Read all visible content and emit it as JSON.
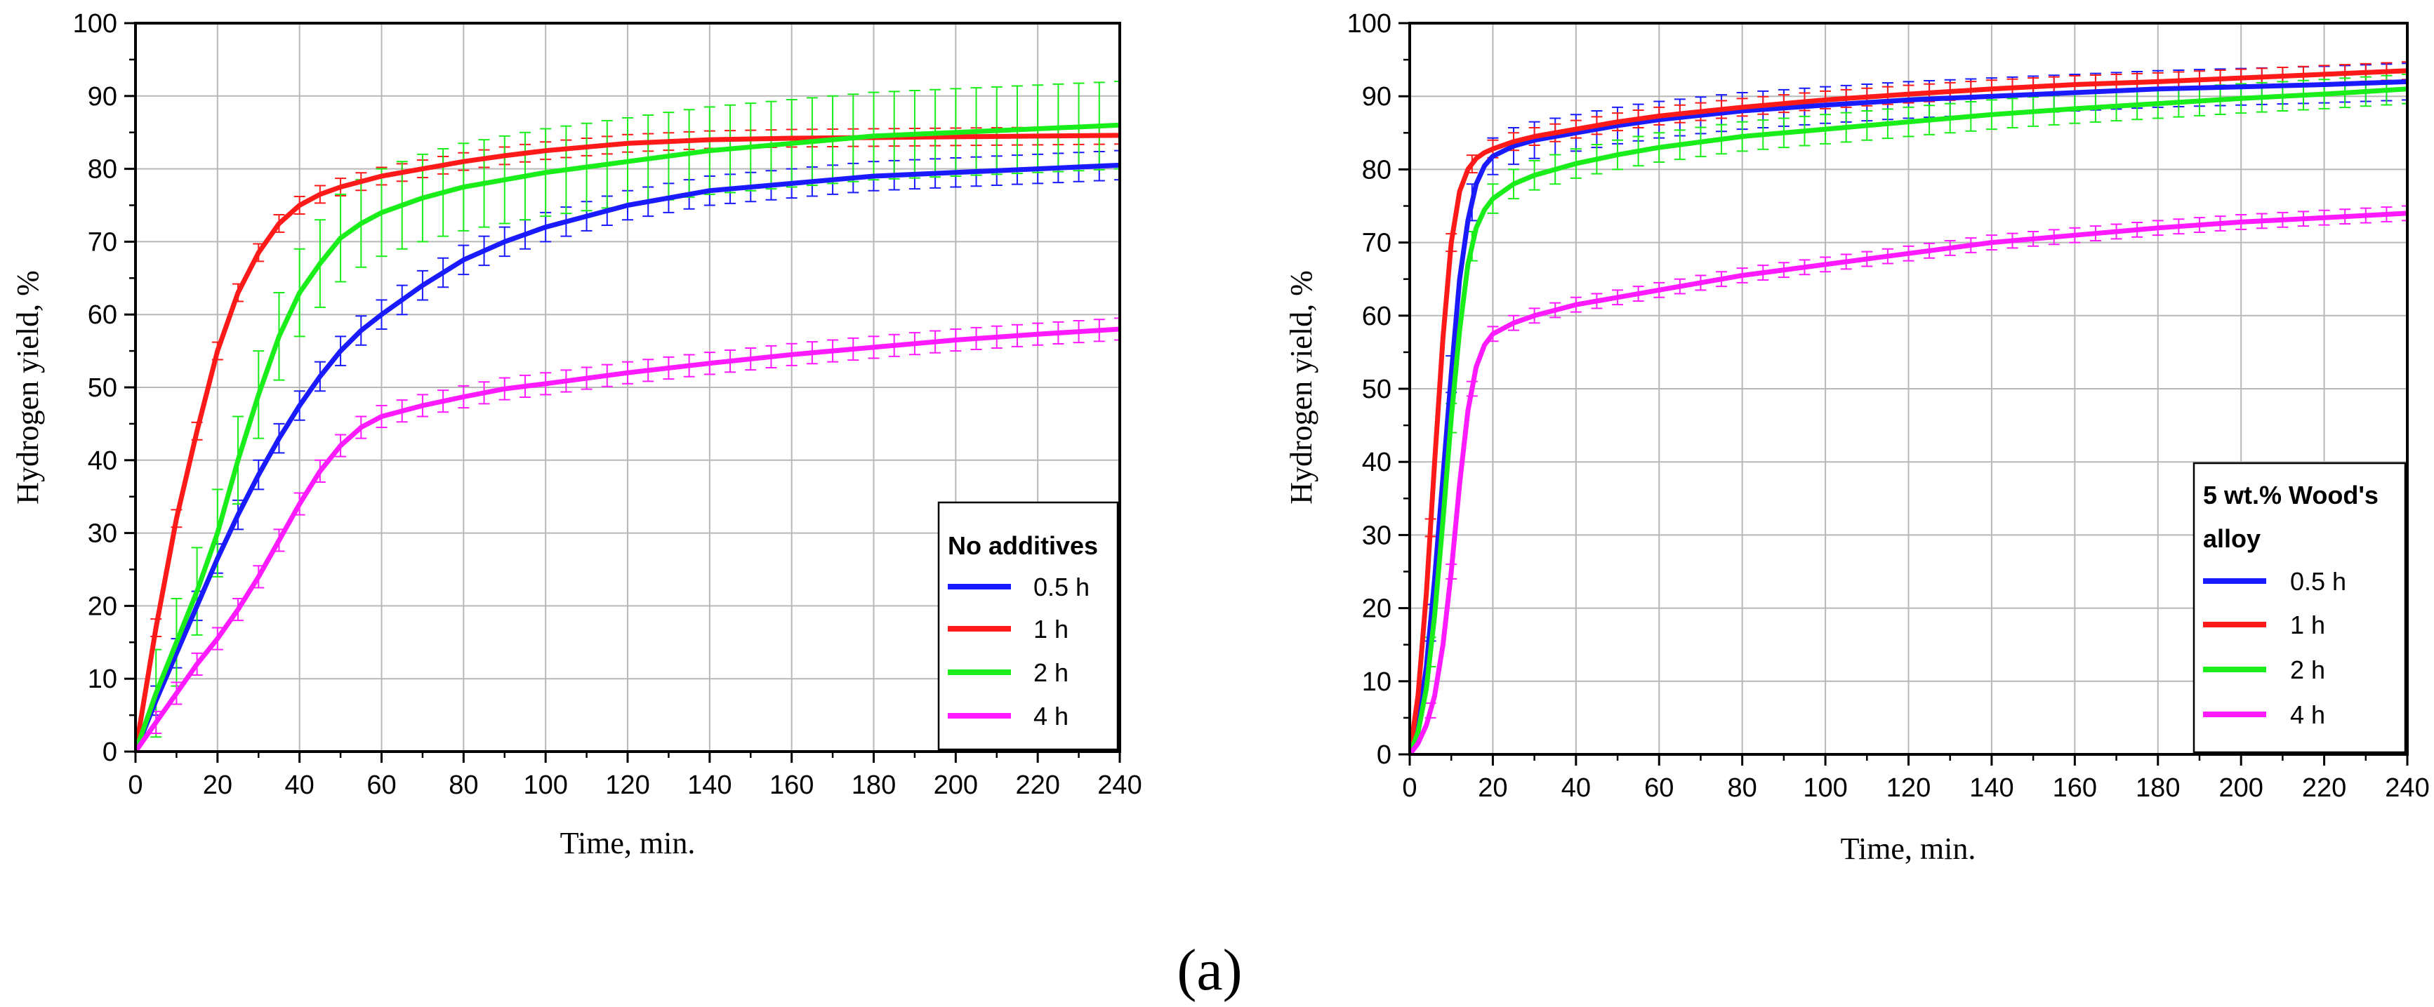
{
  "figure_label": "(a)",
  "chart_data": [
    {
      "type": "line",
      "title": "",
      "xlabel": "Time, min.",
      "ylabel": "Hydrogen yield, %",
      "xlim": [
        0,
        240
      ],
      "ylim": [
        0,
        100
      ],
      "xticks": [
        "0",
        "20",
        "40",
        "60",
        "80",
        "100",
        "120",
        "140",
        "160",
        "180",
        "200",
        "220",
        "240"
      ],
      "yticks": [
        "0",
        "10",
        "20",
        "30",
        "40",
        "50",
        "60",
        "70",
        "80",
        "90",
        "100"
      ],
      "grid": true,
      "error_bars": true,
      "legend_position": "bottom-right",
      "legend_title": "No additives",
      "series": [
        {
          "name": "0.5 h",
          "color": "#1a1aff",
          "x": [
            0,
            5,
            10,
            15,
            20,
            25,
            30,
            35,
            40,
            45,
            50,
            55,
            60,
            70,
            80,
            90,
            100,
            110,
            120,
            140,
            160,
            180,
            200,
            220,
            240
          ],
          "y": [
            0,
            7,
            13.5,
            20,
            26.5,
            32.5,
            38,
            43,
            47.5,
            51.5,
            55,
            57.8,
            60,
            64,
            67.5,
            70,
            72,
            73.5,
            75,
            77,
            78,
            79,
            79.5,
            80,
            80.5
          ],
          "err": 2
        },
        {
          "name": "1 h",
          "color": "#ff1a1a",
          "x": [
            0,
            5,
            10,
            15,
            20,
            25,
            30,
            35,
            40,
            45,
            50,
            60,
            70,
            80,
            90,
            100,
            120,
            140,
            160,
            180,
            200,
            220,
            240
          ],
          "y": [
            0,
            17,
            32,
            44,
            55,
            63,
            68.5,
            72.5,
            75,
            76.5,
            77.5,
            79,
            80,
            81,
            81.8,
            82.5,
            83.5,
            84,
            84.2,
            84.3,
            84.4,
            84.5,
            84.6
          ],
          "err": 1.2
        },
        {
          "name": "2 h",
          "color": "#1aee1a",
          "x": [
            0,
            5,
            10,
            15,
            20,
            25,
            30,
            35,
            40,
            45,
            50,
            55,
            60,
            70,
            80,
            90,
            100,
            120,
            140,
            160,
            180,
            200,
            220,
            240
          ],
          "y": [
            0,
            8,
            15,
            22,
            30,
            40,
            49,
            57,
            63,
            67,
            70.5,
            72.5,
            74,
            76,
            77.5,
            78.5,
            79.5,
            81,
            82.5,
            83.5,
            84.5,
            85,
            85.5,
            86
          ],
          "err": 6
        },
        {
          "name": "4 h",
          "color": "#ff1aff",
          "x": [
            0,
            5,
            10,
            15,
            20,
            25,
            30,
            35,
            40,
            45,
            50,
            55,
            60,
            70,
            80,
            90,
            100,
            120,
            140,
            160,
            180,
            200,
            220,
            240
          ],
          "y": [
            0,
            4,
            8,
            12,
            15.5,
            19.5,
            24,
            29,
            34,
            38.5,
            42,
            44.5,
            46,
            47.5,
            48.7,
            49.8,
            50.5,
            52,
            53.3,
            54.5,
            55.5,
            56.5,
            57.3,
            58
          ],
          "err": 1.5
        }
      ]
    },
    {
      "type": "line",
      "title": "",
      "xlabel": "Time, min.",
      "ylabel": "Hydrogen yield, %",
      "xlim": [
        0,
        240
      ],
      "ylim": [
        0,
        100
      ],
      "xticks": [
        "0",
        "20",
        "40",
        "60",
        "80",
        "100",
        "120",
        "140",
        "160",
        "180",
        "200",
        "220",
        "240"
      ],
      "yticks": [
        "0",
        "10",
        "20",
        "30",
        "40",
        "50",
        "60",
        "70",
        "80",
        "90",
        "100"
      ],
      "grid": true,
      "error_bars": true,
      "legend_position": "bottom-right",
      "legend_title_lines": [
        "5 wt.% Wood's",
        "alloy"
      ],
      "series": [
        {
          "name": "0.5 h",
          "color": "#1a1aff",
          "x": [
            0,
            2,
            4,
            6,
            8,
            10,
            12,
            14,
            16,
            18,
            20,
            25,
            30,
            40,
            50,
            60,
            80,
            100,
            120,
            140,
            160,
            180,
            200,
            220,
            240
          ],
          "y": [
            0,
            4,
            12,
            24,
            38,
            52,
            65,
            73,
            78,
            80.5,
            81.8,
            83.2,
            84,
            85,
            86,
            86.8,
            88,
            88.8,
            89.5,
            90,
            90.5,
            91,
            91.3,
            91.6,
            92
          ],
          "err": 2.5
        },
        {
          "name": "1 h",
          "color": "#ff1a1a",
          "x": [
            0,
            2,
            4,
            6,
            8,
            10,
            12,
            14,
            16,
            18,
            20,
            25,
            30,
            40,
            50,
            60,
            80,
            100,
            120,
            140,
            160,
            180,
            200,
            220,
            240
          ],
          "y": [
            0,
            8,
            22,
            40,
            57,
            70,
            77,
            80,
            81.5,
            82.3,
            82.8,
            83.8,
            84.5,
            85.5,
            86.5,
            87.3,
            88.5,
            89.5,
            90.3,
            91,
            91.6,
            92,
            92.5,
            93,
            93.5
          ],
          "err": 1.2
        },
        {
          "name": "2 h",
          "color": "#1aee1a",
          "x": [
            0,
            2,
            4,
            6,
            8,
            10,
            12,
            14,
            16,
            18,
            20,
            25,
            30,
            40,
            50,
            60,
            80,
            100,
            120,
            140,
            160,
            180,
            200,
            220,
            240
          ],
          "y": [
            0,
            3,
            9,
            19,
            32,
            46,
            58,
            67,
            72,
            74.5,
            76,
            78,
            79.2,
            80.8,
            82,
            83,
            84.5,
            85.5,
            86.5,
            87.5,
            88.3,
            89,
            89.7,
            90.3,
            91
          ],
          "err": 2
        },
        {
          "name": "4 h",
          "color": "#ff1aff",
          "x": [
            0,
            2,
            4,
            6,
            8,
            10,
            12,
            14,
            16,
            18,
            20,
            25,
            30,
            40,
            50,
            60,
            80,
            100,
            120,
            140,
            160,
            180,
            200,
            220,
            240
          ],
          "y": [
            0,
            1.5,
            4,
            8,
            15,
            25,
            37,
            47,
            53,
            56,
            57.5,
            59,
            60,
            61.5,
            62.5,
            63.5,
            65.5,
            67,
            68.5,
            70,
            71,
            72,
            72.8,
            73.4,
            74
          ],
          "err": 1
        }
      ]
    }
  ]
}
